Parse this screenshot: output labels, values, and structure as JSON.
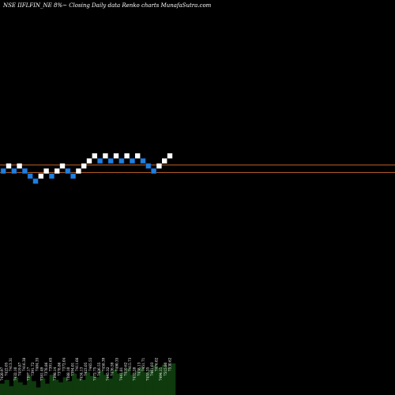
{
  "header": {
    "title": "NSE IIFLFIN_NE 8%~  Closing Daily data  Renko  charts MunafaSutra.com"
  },
  "chart_data": {
    "type": "renko",
    "title": "NSE IIFLFIN_NE 8%~  Closing Daily data  Renko  charts MunafaSutra.com",
    "box_size": 1,
    "level_start": 0,
    "bricks": [
      {
        "col": 0,
        "level": 0,
        "dir": "down"
      },
      {
        "col": 1,
        "level": 1,
        "dir": "up"
      },
      {
        "col": 2,
        "level": 0,
        "dir": "down"
      },
      {
        "col": 3,
        "level": 1,
        "dir": "up"
      },
      {
        "col": 4,
        "level": 0,
        "dir": "down"
      },
      {
        "col": 5,
        "level": -1,
        "dir": "down"
      },
      {
        "col": 6,
        "level": -2,
        "dir": "down"
      },
      {
        "col": 7,
        "level": -1,
        "dir": "up"
      },
      {
        "col": 8,
        "level": 0,
        "dir": "up"
      },
      {
        "col": 9,
        "level": -1,
        "dir": "down"
      },
      {
        "col": 10,
        "level": 0,
        "dir": "up"
      },
      {
        "col": 11,
        "level": 1,
        "dir": "up"
      },
      {
        "col": 12,
        "level": 0,
        "dir": "down"
      },
      {
        "col": 13,
        "level": -1,
        "dir": "down"
      },
      {
        "col": 14,
        "level": 0,
        "dir": "up"
      },
      {
        "col": 15,
        "level": 1,
        "dir": "up"
      },
      {
        "col": 16,
        "level": 2,
        "dir": "up"
      },
      {
        "col": 17,
        "level": 3,
        "dir": "up"
      },
      {
        "col": 18,
        "level": 2,
        "dir": "down"
      },
      {
        "col": 19,
        "level": 3,
        "dir": "up"
      },
      {
        "col": 20,
        "level": 2,
        "dir": "down"
      },
      {
        "col": 21,
        "level": 3,
        "dir": "up"
      },
      {
        "col": 22,
        "level": 2,
        "dir": "down"
      },
      {
        "col": 23,
        "level": 3,
        "dir": "up"
      },
      {
        "col": 24,
        "level": 2,
        "dir": "down"
      },
      {
        "col": 25,
        "level": 3,
        "dir": "up"
      },
      {
        "col": 26,
        "level": 2,
        "dir": "down"
      },
      {
        "col": 27,
        "level": 1,
        "dir": "down"
      },
      {
        "col": 28,
        "level": 0,
        "dir": "down"
      },
      {
        "col": 29,
        "level": 1,
        "dir": "up"
      },
      {
        "col": 30,
        "level": 2,
        "dir": "up"
      },
      {
        "col": 31,
        "level": 3,
        "dir": "up"
      }
    ],
    "hlines": [
      {
        "level": 1.2,
        "color": "#c0642a"
      },
      {
        "level": -0.3,
        "color": "#c0642a"
      }
    ],
    "bottom_labels": [
      "7420.97",
      "7422.05",
      "7413.31",
      "7432.10",
      "7419.87",
      "7416.38",
      "7397.17",
      "7391.72",
      "7404.35",
      "7381.49",
      "7378.86",
      "7391.65",
      "7398.14",
      "7378.86",
      "7372.04",
      "7388.10",
      "7394.01",
      "7411.66",
      "7434.13",
      "7423.05",
      "7465.55",
      "7472.75",
      "7426.55",
      "7458.39",
      "7445.32",
      "7476.59",
      "7490.35",
      "7441.81",
      "7410.62",
      "7415.73",
      "7432.28",
      "7438.13",
      "7451.71",
      "7455.35",
      "7461.03",
      "7476.02",
      "7494.15",
      "7515.80",
      "7530.62"
    ],
    "volume_bars": [
      9,
      12,
      7,
      14,
      10,
      8,
      15,
      11,
      6,
      13,
      9,
      16,
      12,
      10,
      14,
      11,
      17,
      13,
      12,
      18,
      15,
      14,
      19,
      16,
      13,
      20,
      17,
      18,
      21,
      16,
      19,
      22,
      18,
      20,
      23,
      21,
      24,
      22,
      25
    ],
    "colors": {
      "background": "#000000",
      "up": "#ffffff",
      "down": "#1e7fe0",
      "down_border": "#0a3f80",
      "line": "#c0642a",
      "volume": "#0e3a0e",
      "text": "#ffffff"
    }
  }
}
